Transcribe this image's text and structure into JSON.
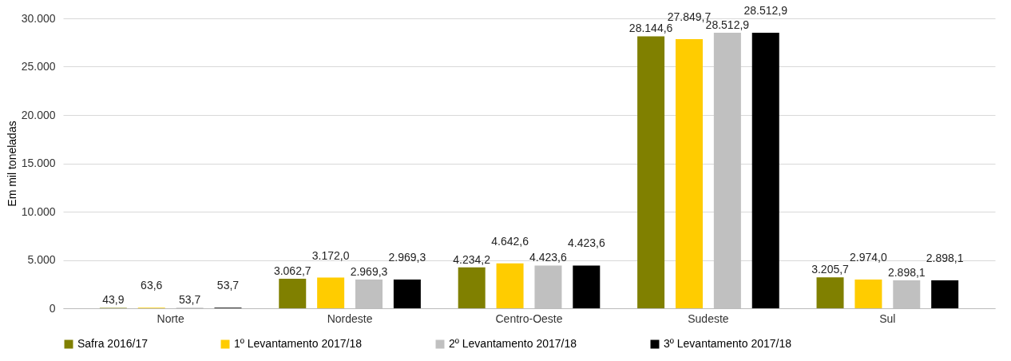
{
  "chart_data": {
    "type": "bar",
    "ylabel": "Em mil toneladas",
    "categories": [
      "Norte",
      "Nordeste",
      "Centro-Oeste",
      "Sudeste",
      "Sul"
    ],
    "series": [
      {
        "name": "Safra 2016/17",
        "color": "#808000",
        "values": [
          43.9,
          3062.7,
          4234.2,
          28144.6,
          3205.7
        ],
        "value_labels": [
          "43,9",
          "3.062,7",
          "4.234,2",
          "28.144,6",
          "3.205,7"
        ]
      },
      {
        "name": "1º Levantamento 2017/18",
        "color": "#ffcc00",
        "values": [
          63.6,
          3172.0,
          4642.6,
          27849.7,
          2974.0
        ],
        "value_labels": [
          "63,6",
          "3.172,0",
          "4.642,6",
          "27.849,7",
          "2.974,0"
        ]
      },
      {
        "name": "2º Levantamento 2017/18",
        "color": "#c0c0c0",
        "values": [
          53.7,
          2969.3,
          4423.6,
          28512.9,
          2898.1
        ],
        "value_labels": [
          "53,7",
          "2.969,3",
          "4.423,6",
          "28.512,9",
          "2.898,1"
        ]
      },
      {
        "name": "3º Levantamento 2017/18",
        "color": "#000000",
        "values": [
          53.7,
          2969.3,
          4423.6,
          28512.9,
          2898.1
        ],
        "value_labels": [
          "53,7",
          "2.969,3",
          "4.423,6",
          "28.512,9",
          "2.898,1"
        ]
      }
    ],
    "ylim": [
      0,
      30000
    ],
    "yticks": [
      {
        "value": 0,
        "label": "0"
      },
      {
        "value": 5000,
        "label": "5.000"
      },
      {
        "value": 10000,
        "label": "10.000"
      },
      {
        "value": 15000,
        "label": "15.000"
      },
      {
        "value": 20000,
        "label": "20.000"
      },
      {
        "value": 25000,
        "label": "25.000"
      },
      {
        "value": 30000,
        "label": "30.000"
      }
    ],
    "grid": "y",
    "legend": "bottom"
  }
}
